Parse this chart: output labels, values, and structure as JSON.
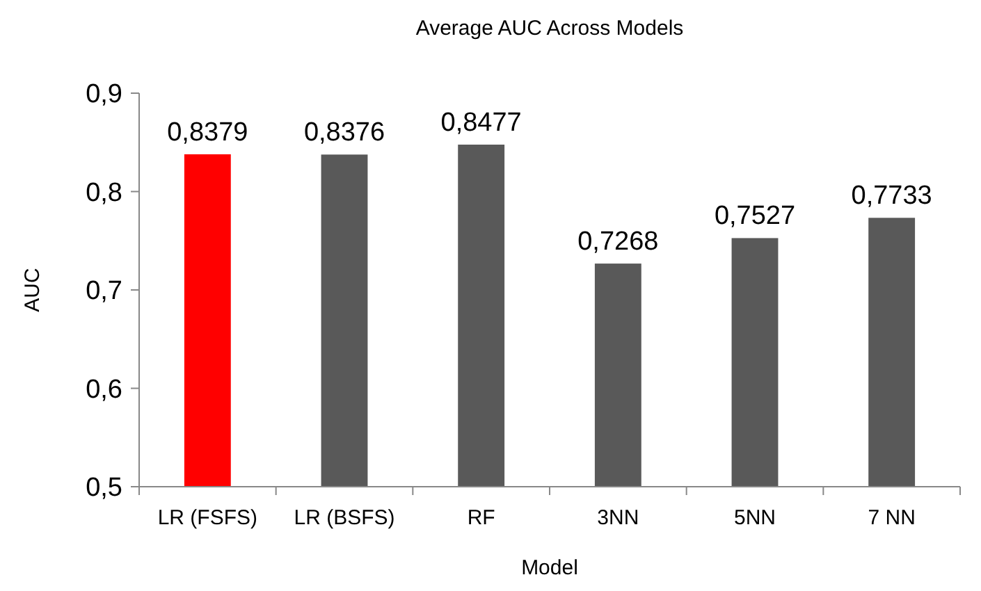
{
  "chart_data": {
    "type": "bar",
    "title": "Average AUC Across Models",
    "xlabel": "Model",
    "ylabel": "AUC",
    "categories": [
      "LR (FSFS)",
      "LR (BSFS)",
      "RF",
      "3NN",
      "5NN",
      "7 NN"
    ],
    "values": [
      0.8379,
      0.8376,
      0.8477,
      0.7268,
      0.7527,
      0.7733
    ],
    "colors": [
      "#ff0000",
      "#595959",
      "#595959",
      "#595959",
      "#595959",
      "#595959"
    ],
    "value_labels": [
      "0,8379",
      "0,8376",
      "0,8477",
      "0,7268",
      "0,7527",
      "0,7733"
    ],
    "ylim": [
      0.5,
      0.9
    ],
    "yticks": [
      {
        "value": 0.5,
        "label": "0,5"
      },
      {
        "value": 0.6,
        "label": "0,6"
      },
      {
        "value": 0.7,
        "label": "0,7"
      },
      {
        "value": 0.8,
        "label": "0,8"
      },
      {
        "value": 0.9,
        "label": "0,9"
      }
    ],
    "grid": false
  }
}
